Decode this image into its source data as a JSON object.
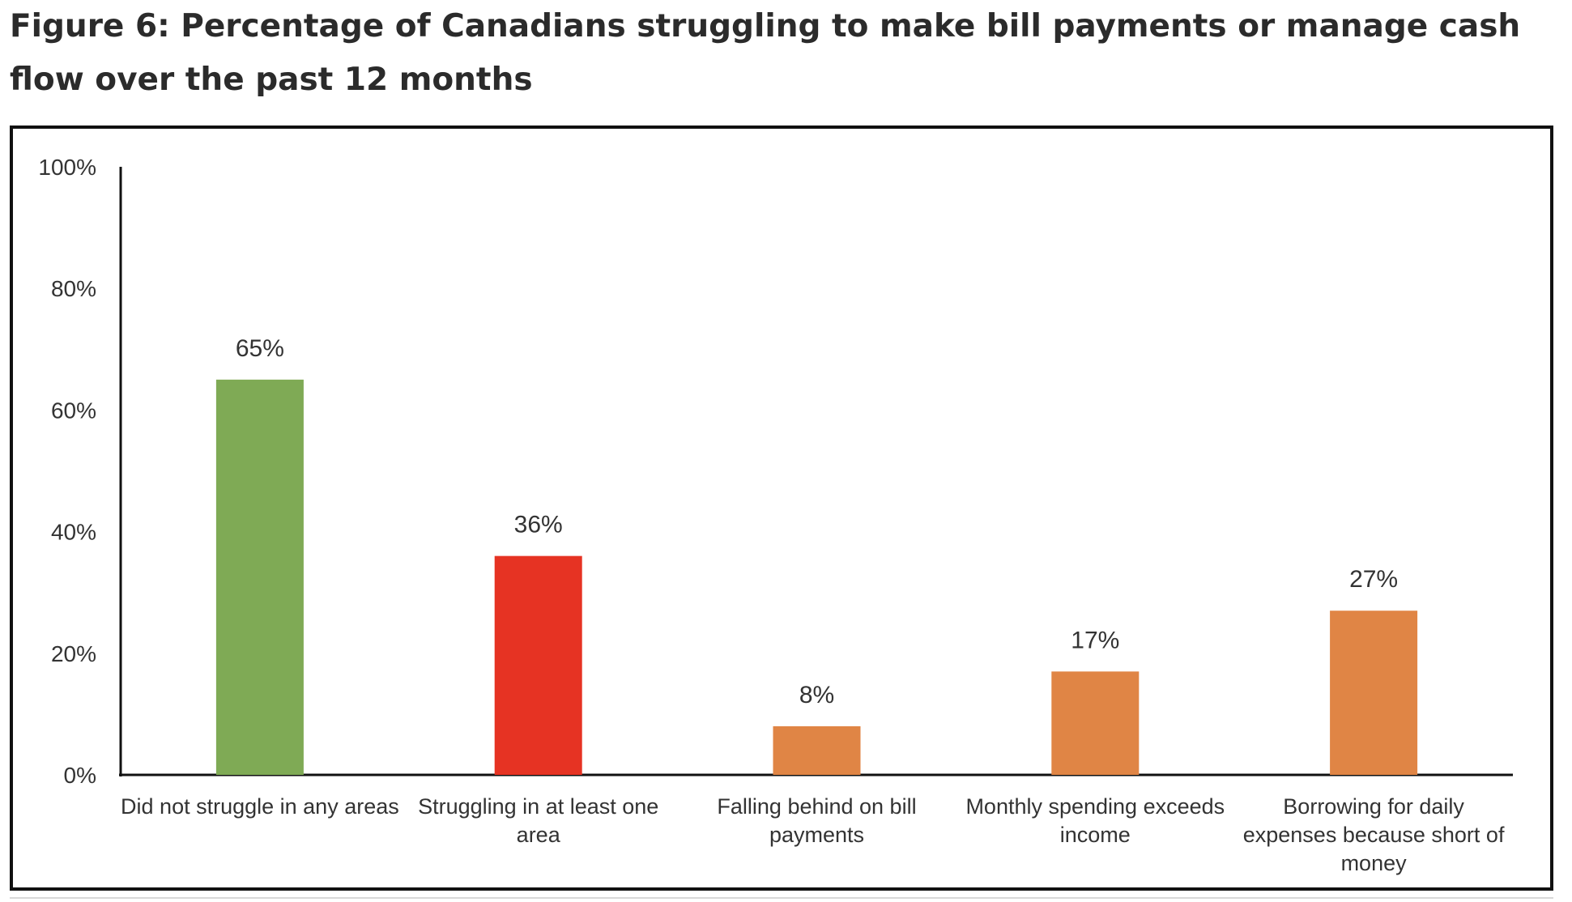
{
  "figure": {
    "title": "Figure 6: Percentage of Canadians struggling to make bill payments or manage cash flow over the past 12 months"
  },
  "chart_data": {
    "type": "bar",
    "title": "",
    "xlabel": "",
    "ylabel": "",
    "ylim": [
      0,
      100
    ],
    "y_ticks": [
      "0%",
      "20%",
      "40%",
      "60%",
      "80%",
      "100%"
    ],
    "y_tick_values": [
      0,
      20,
      40,
      60,
      80,
      100
    ],
    "grid": false,
    "legend": "none",
    "categories": [
      [
        "Did not struggle in any areas"
      ],
      [
        "Struggling in at least one",
        "area"
      ],
      [
        "Falling behind on bill",
        "payments"
      ],
      [
        "Monthly spending exceeds",
        "income"
      ],
      [
        "Borrowing for daily",
        "expenses because short of",
        "money"
      ]
    ],
    "values": [
      65,
      36,
      8,
      17,
      27
    ],
    "data_labels": [
      "65%",
      "36%",
      "8%",
      "17%",
      "27%"
    ],
    "colors": [
      "#7faa55",
      "#e63323",
      "#e08545",
      "#e08545",
      "#e08545"
    ]
  }
}
